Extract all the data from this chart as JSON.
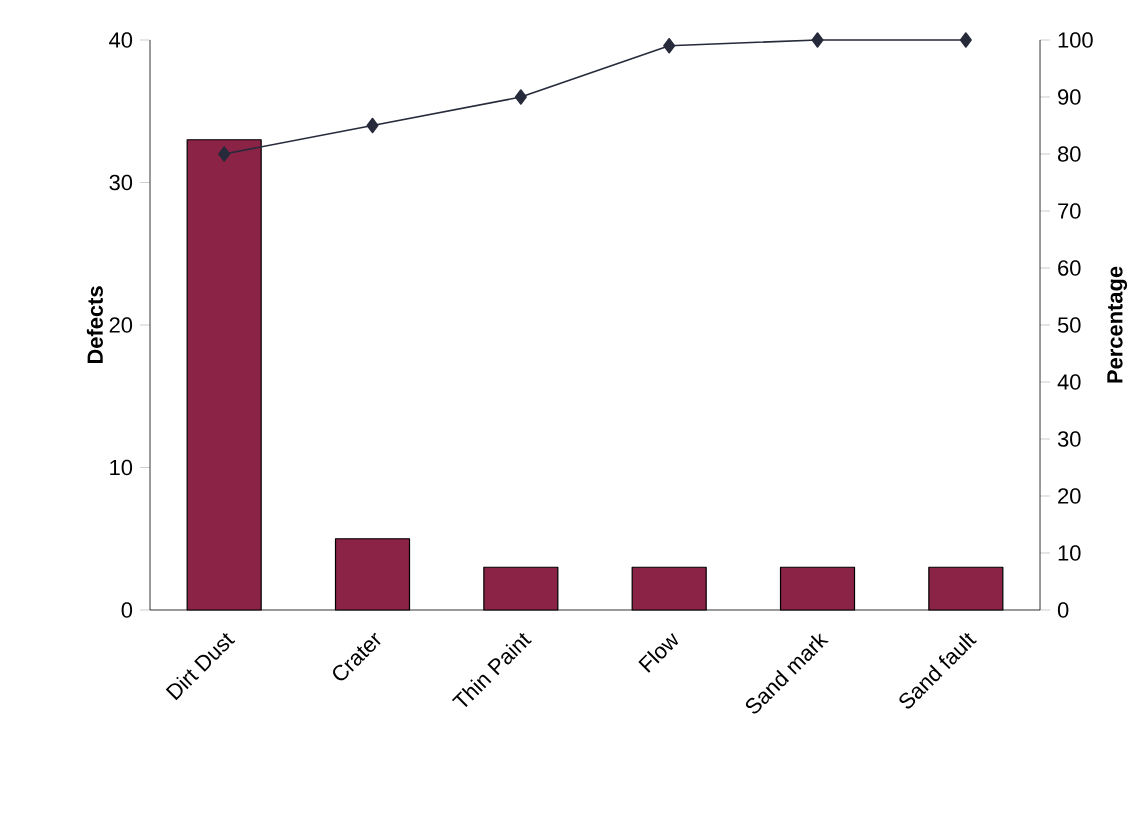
{
  "chart_data": {
    "type": "bar",
    "categories": [
      "Dirt Dust",
      "Crater",
      "Thin Paint",
      "Flow",
      "Sand mark",
      "Sand fault"
    ],
    "series": [
      {
        "color": "#8b2346",
        "values": [
          33,
          5,
          3,
          3,
          3,
          3
        ]
      },
      {
        "type": "line",
        "axis": "y2",
        "color": "#262a3a",
        "values": [
          80,
          85,
          90,
          99,
          100,
          100
        ]
      }
    ],
    "ylabel": "Defects",
    "y2label": "Percentage",
    "ylim": [
      0,
      40
    ],
    "yticks": [
      0,
      10,
      20,
      30,
      40
    ],
    "y2lim": [
      0,
      100
    ],
    "y2ticks": [
      0,
      10,
      20,
      30,
      40,
      50,
      60,
      70,
      80,
      90,
      100
    ],
    "marker": "diamond",
    "line_style": "solid"
  }
}
